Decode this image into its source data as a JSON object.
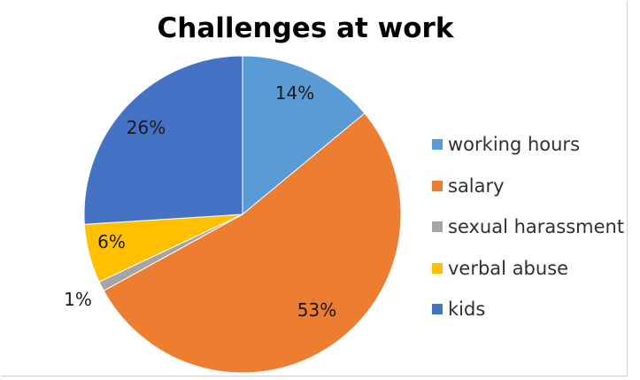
{
  "chart_data": {
    "type": "pie",
    "title": "Challenges at work",
    "categories": [
      "working hours",
      "salary",
      "sexual harassment",
      "verbal abuse",
      "kids"
    ],
    "values": [
      14,
      53,
      1,
      6,
      26
    ],
    "data_labels": [
      "14%",
      "53%",
      "1%",
      "6%",
      "26%"
    ],
    "colors": [
      "#5B9BD5",
      "#ED7D31",
      "#A5A5A5",
      "#FFC000",
      "#4472C4"
    ],
    "start_angle_deg": 0,
    "direction": "clockwise",
    "legend_position": "right"
  }
}
